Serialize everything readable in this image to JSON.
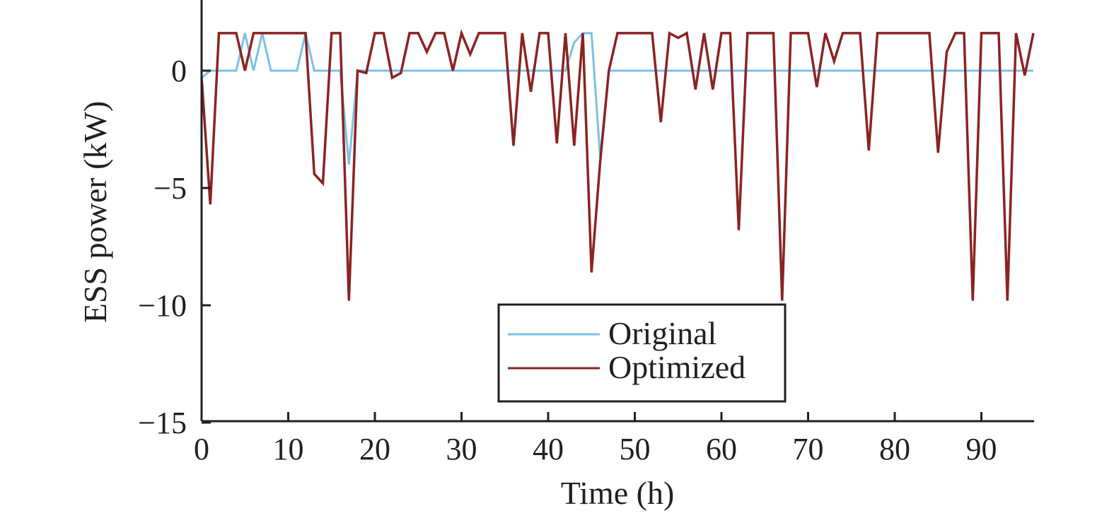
{
  "chart_data": {
    "type": "line",
    "xlabel": "Time (h)",
    "ylabel": "ESS power (kW)",
    "xlim": [
      0,
      96
    ],
    "ylim": [
      -15,
      3
    ],
    "xticks": [
      0,
      10,
      20,
      30,
      40,
      50,
      60,
      70,
      80,
      90
    ],
    "yticks": [
      -15,
      -10,
      -5,
      0
    ],
    "xtick_labels": [
      "0",
      "10",
      "20",
      "30",
      "40",
      "50",
      "60",
      "70",
      "80",
      "90"
    ],
    "ytick_labels": [
      "−15",
      "−10",
      "−5",
      "0"
    ],
    "grid": false,
    "legend_position": "bottom-center",
    "series": [
      {
        "name": "Original",
        "color": "#7ec0e6",
        "x": [
          0,
          1,
          2,
          3,
          4,
          5,
          6,
          7,
          8,
          9,
          10,
          11,
          12,
          13,
          14,
          15,
          16,
          17,
          18,
          19,
          20,
          21,
          22,
          23,
          24,
          25,
          26,
          27,
          28,
          29,
          30,
          31,
          32,
          33,
          34,
          35,
          36,
          37,
          38,
          39,
          40,
          41,
          42,
          43,
          44,
          45,
          46,
          47,
          48,
          49,
          50,
          51,
          52,
          53,
          54,
          55,
          56,
          57,
          58,
          59,
          60,
          61,
          62,
          63,
          64,
          65,
          66,
          67,
          68,
          69,
          70,
          71,
          72,
          73,
          74,
          75,
          76,
          77,
          78,
          79,
          80,
          81,
          82,
          83,
          84,
          85,
          86,
          87,
          88,
          89,
          90,
          91,
          92,
          93,
          94,
          95,
          96
        ],
        "y": [
          -0.3,
          0,
          0,
          0,
          0,
          1.6,
          0,
          1.6,
          0,
          0,
          0,
          0,
          1.6,
          0,
          0,
          0,
          0,
          -4.0,
          0,
          0,
          0,
          0,
          0,
          0,
          0,
          0,
          0,
          0,
          0,
          0,
          0,
          0,
          0,
          0,
          0,
          0,
          0,
          0,
          0,
          0,
          0,
          0,
          0,
          1.2,
          1.6,
          1.6,
          -3.7,
          0,
          0,
          0,
          0,
          0,
          0,
          0,
          0,
          0,
          0,
          0,
          0,
          0,
          0,
          0,
          0,
          0,
          0,
          0,
          0,
          0,
          0,
          0,
          0,
          0,
          0,
          0,
          0,
          0,
          0,
          0,
          0,
          0,
          0,
          0,
          0,
          0,
          0,
          0,
          0,
          0,
          0,
          0,
          0,
          0,
          0,
          0,
          0,
          0,
          0
        ]
      },
      {
        "name": "Optimized",
        "color": "#8b2323",
        "x": [
          0,
          1,
          2,
          3,
          4,
          5,
          6,
          7,
          8,
          9,
          10,
          11,
          12,
          13,
          14,
          15,
          16,
          17,
          18,
          19,
          20,
          21,
          22,
          23,
          24,
          25,
          26,
          27,
          28,
          29,
          30,
          31,
          32,
          33,
          34,
          35,
          36,
          37,
          38,
          39,
          40,
          41,
          42,
          43,
          44,
          45,
          46,
          47,
          48,
          49,
          50,
          51,
          52,
          53,
          54,
          55,
          56,
          57,
          58,
          59,
          60,
          61,
          62,
          63,
          64,
          65,
          66,
          67,
          68,
          69,
          70,
          71,
          72,
          73,
          74,
          75,
          76,
          77,
          78,
          79,
          80,
          81,
          82,
          83,
          84,
          85,
          86,
          87,
          88,
          89,
          90,
          91,
          92,
          93,
          94,
          95,
          96
        ],
        "y": [
          -0.3,
          -5.7,
          1.6,
          1.6,
          1.6,
          0,
          1.6,
          1.6,
          1.6,
          1.6,
          1.6,
          1.6,
          1.6,
          -4.4,
          -4.8,
          1.6,
          1.6,
          -9.8,
          0,
          -0.1,
          1.6,
          1.6,
          -0.3,
          -0.1,
          1.6,
          1.6,
          0.8,
          1.6,
          1.6,
          0,
          1.6,
          0.7,
          1.6,
          1.6,
          1.6,
          1.6,
          -3.2,
          1.6,
          -0.9,
          1.6,
          1.6,
          -3.1,
          1.6,
          -3.2,
          1.6,
          -8.6,
          -3.9,
          0,
          1.6,
          1.6,
          1.6,
          1.6,
          1.6,
          -2.2,
          1.6,
          1.4,
          1.6,
          -0.8,
          1.6,
          -0.8,
          1.6,
          1.6,
          -6.8,
          1.6,
          1.6,
          1.6,
          1.6,
          -9.8,
          1.6,
          1.6,
          1.6,
          -0.7,
          1.6,
          0.4,
          1.6,
          1.6,
          1.6,
          -3.4,
          1.6,
          1.6,
          1.6,
          1.6,
          1.6,
          1.6,
          1.6,
          -3.5,
          0.8,
          1.6,
          1.6,
          -9.8,
          1.6,
          1.6,
          1.6,
          -9.8,
          1.6,
          -0.2,
          1.6
        ]
      }
    ]
  }
}
